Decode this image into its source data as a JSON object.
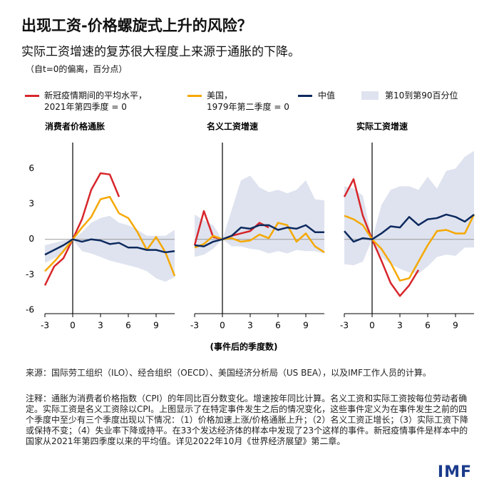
{
  "title": "出现工资-价格螺旋式上升的风险？",
  "subtitle": "实际工资增速的复苏很大程度上来源于通胀的下降。",
  "unit_note": "（自t=0的偏离，百分点）",
  "x_label": "(事件后的季度数)",
  "source": "来源：国际劳工组织（ILO）、经合组织（OECD）、美国经济分析局（US BEA），以及IMF工作人员的计算。",
  "note": "注释：通胀为消费者价格指数（CPI）的年同比百分数变化。增速按年同比计算。名义工资和实际工资按每位劳动者确定。实际工资是名义工资除以CPI。上图显示了在特定事件发生之后的情况变化，这些事件定义为在事件发生之前的四个季度中至少有三个季度出现以下情况：（1）价格加速上涨/价格通胀上升；（2）名义工资正增长；（3）实际工资下降或保持不变；（4）失业率下降或持平。在33个发达经济体的样本中发现了23个这样的事件。新冠疫情事件是样本中的国家从2021年第四季度以来的平均值。详见2022年10月《世界经济展望》第二章。",
  "logo": "IMF",
  "chart_data": [
    {
      "type": "line",
      "title": "消费者价格通胀",
      "x": [
        -3,
        -2,
        -1,
        0,
        1,
        2,
        3,
        4,
        5,
        6,
        7,
        8,
        9,
        10,
        11
      ],
      "xlim": [
        -3,
        11
      ],
      "xticks": [
        -3,
        0,
        3,
        6,
        9
      ],
      "ylim": [
        -6.3,
        8.2
      ],
      "yticks": [
        -6,
        -3,
        0,
        3,
        6
      ],
      "band": {
        "name": "第10到第90百分位",
        "color": "#dfe3ef",
        "high": [
          -0.5,
          -0.3,
          -0.1,
          0,
          0.6,
          1.4,
          1.8,
          2.0,
          1.4,
          1.2,
          0.8,
          0.3,
          0.3,
          0.3,
          0.8
        ],
        "low": [
          -2.0,
          -1.6,
          -1.2,
          0,
          -1.0,
          -1.2,
          -1.5,
          -1.8,
          -2.0,
          -2.2,
          -2.4,
          -2.7,
          -3.3,
          -3.6,
          -3.2
        ]
      },
      "series": [
        {
          "name": "新冠疫情期间的平均水平，\n2021年第四季度 = 0",
          "color": "#d7262b",
          "values": [
            -3.9,
            -2.3,
            -1.6,
            0,
            1.7,
            4.2,
            5.6,
            5.5,
            3.6,
            null,
            null,
            null,
            null,
            null,
            null
          ]
        },
        {
          "name": "美国，\n1979年第二季度 = 0",
          "color": "#f5a800",
          "values": [
            -2.7,
            -1.9,
            -1.0,
            0,
            1.0,
            1.9,
            3.4,
            3.6,
            2.2,
            1.8,
            0.6,
            -0.9,
            0.2,
            -1.1,
            -3.1
          ]
        },
        {
          "name": "中值",
          "color": "#0d2a5e",
          "values": [
            -1.3,
            -0.9,
            -0.5,
            0,
            -0.2,
            0.0,
            -0.1,
            -0.4,
            -0.3,
            -0.7,
            -0.7,
            -0.9,
            -0.9,
            -1.1,
            -1.0
          ]
        }
      ]
    },
    {
      "type": "line",
      "title": "名义工资增速",
      "x": [
        -3,
        -2,
        -1,
        0,
        1,
        2,
        3,
        4,
        5,
        6,
        7,
        8,
        9,
        10,
        11
      ],
      "xlim": [
        -3,
        11
      ],
      "xticks": [
        -3,
        0,
        3,
        6,
        9
      ],
      "ylim": [
        -6.3,
        8.2
      ],
      "band": {
        "color": "#dfe3ef",
        "high": [
          2.1,
          1.6,
          1.2,
          0,
          2.5,
          5.0,
          5.4,
          4.4,
          4.0,
          4.2,
          3.9,
          4.2,
          5.0,
          3.4,
          3.3
        ],
        "low": [
          -1.5,
          -1.3,
          -0.8,
          0,
          -0.6,
          -0.6,
          -0.8,
          -0.9,
          -1.2,
          -1.0,
          -1.2,
          -0.9,
          -1.0,
          -1.0,
          -1.2
        ]
      },
      "series": [
        {
          "color": "#d7262b",
          "values": [
            -0.5,
            2.4,
            0.2,
            0,
            0.3,
            0.5,
            0.7,
            1.4,
            1.0,
            null,
            null,
            null,
            null,
            null,
            null
          ]
        },
        {
          "color": "#f5a800",
          "values": [
            -0.7,
            -0.4,
            0.3,
            0,
            0.1,
            -0.2,
            -0.1,
            0.4,
            0.1,
            1.4,
            1.2,
            -0.2,
            0.5,
            -0.6,
            -1.1
          ]
        },
        {
          "color": "#0d2a5e",
          "values": [
            -0.5,
            -0.6,
            -0.2,
            0,
            0.3,
            1.0,
            0.9,
            1.2,
            1.2,
            0.8,
            1.0,
            0.9,
            1.2,
            0.6,
            0.6
          ]
        }
      ]
    },
    {
      "type": "line",
      "title": "实际工资增速",
      "x": [
        -3,
        -2,
        -1,
        0,
        1,
        2,
        3,
        4,
        5,
        6,
        7,
        8,
        9,
        10,
        11
      ],
      "xlim": [
        -3,
        11
      ],
      "xticks": [
        -3,
        0,
        3,
        6,
        9
      ],
      "ylim": [
        -6.3,
        8.2
      ],
      "band": {
        "color": "#dfe3ef",
        "high": [
          4.5,
          4.3,
          3.7,
          0,
          2.9,
          4.2,
          4.5,
          4.5,
          4.2,
          5.3,
          4.3,
          5.8,
          6.0,
          7.0,
          7.5
        ],
        "low": [
          -2.1,
          -2.2,
          -1.9,
          0,
          -1.5,
          -2.1,
          -2.5,
          -2.8,
          -2.9,
          -2.3,
          -1.5,
          -1.3,
          -1.4,
          -0.7,
          -0.7
        ]
      },
      "series": [
        {
          "color": "#d7262b",
          "values": [
            3.6,
            5.1,
            2.0,
            0,
            -1.8,
            -3.7,
            -4.8,
            -3.9,
            -2.6,
            null,
            null,
            null,
            null,
            null,
            null
          ]
        },
        {
          "color": "#f5a800",
          "values": [
            2.0,
            1.7,
            1.2,
            0,
            -0.8,
            -2.0,
            -3.5,
            -3.3,
            -1.9,
            -0.5,
            0.7,
            0.8,
            0.5,
            0.5,
            2.1
          ]
        },
        {
          "color": "#0d2a5e",
          "values": [
            0.7,
            -0.2,
            0.1,
            0,
            0.5,
            1.1,
            1.0,
            1.9,
            1.2,
            1.7,
            1.8,
            2.1,
            1.9,
            1.5,
            2.1
          ]
        }
      ]
    }
  ]
}
